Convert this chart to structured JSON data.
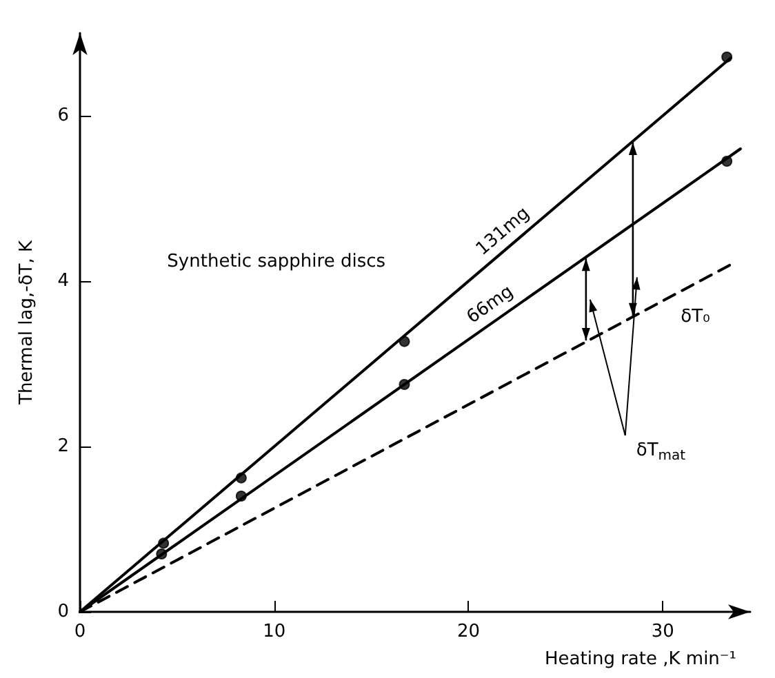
{
  "chart_data": {
    "type": "line",
    "xlabel": "Heating rate ,K min⁻¹",
    "ylabel": "Thermal lag,-δT, K",
    "xlim": [
      0,
      34.5
    ],
    "ylim": [
      0,
      7
    ],
    "xticks": [
      0,
      10,
      20,
      30
    ],
    "yticks": [
      0,
      2,
      4,
      6
    ],
    "grid": false,
    "legend": false,
    "annotations": [
      "Synthetic sapphire discs",
      "δT$_{mat}$"
    ],
    "series": [
      {
        "name": "131mg",
        "color": "#000000",
        "x": [
          0,
          33.5
        ],
        "values": [
          0,
          6.7
        ],
        "marker": "none",
        "line_style": "solid"
      },
      {
        "type": "scatter",
        "color": "#000000",
        "x": [
          4.3,
          8.3,
          16.7,
          33.3
        ],
        "values": [
          0.83,
          1.62,
          3.27,
          6.71
        ],
        "marker": "circle"
      },
      {
        "name": "66mg",
        "color": "#000000",
        "x": [
          0,
          34
        ],
        "values": [
          0,
          5.6
        ],
        "marker": "none",
        "line_style": "solid"
      },
      {
        "type": "scatter",
        "color": "#000000",
        "x": [
          4.2,
          8.3,
          16.7,
          33.3
        ],
        "values": [
          0.7,
          1.4,
          2.75,
          5.45
        ],
        "marker": "circle"
      },
      {
        "name": "δT₀",
        "color": "#000000",
        "x": [
          0,
          33.5
        ],
        "values": [
          0,
          4.2
        ],
        "marker": "none",
        "line_style": "dashed"
      }
    ]
  }
}
